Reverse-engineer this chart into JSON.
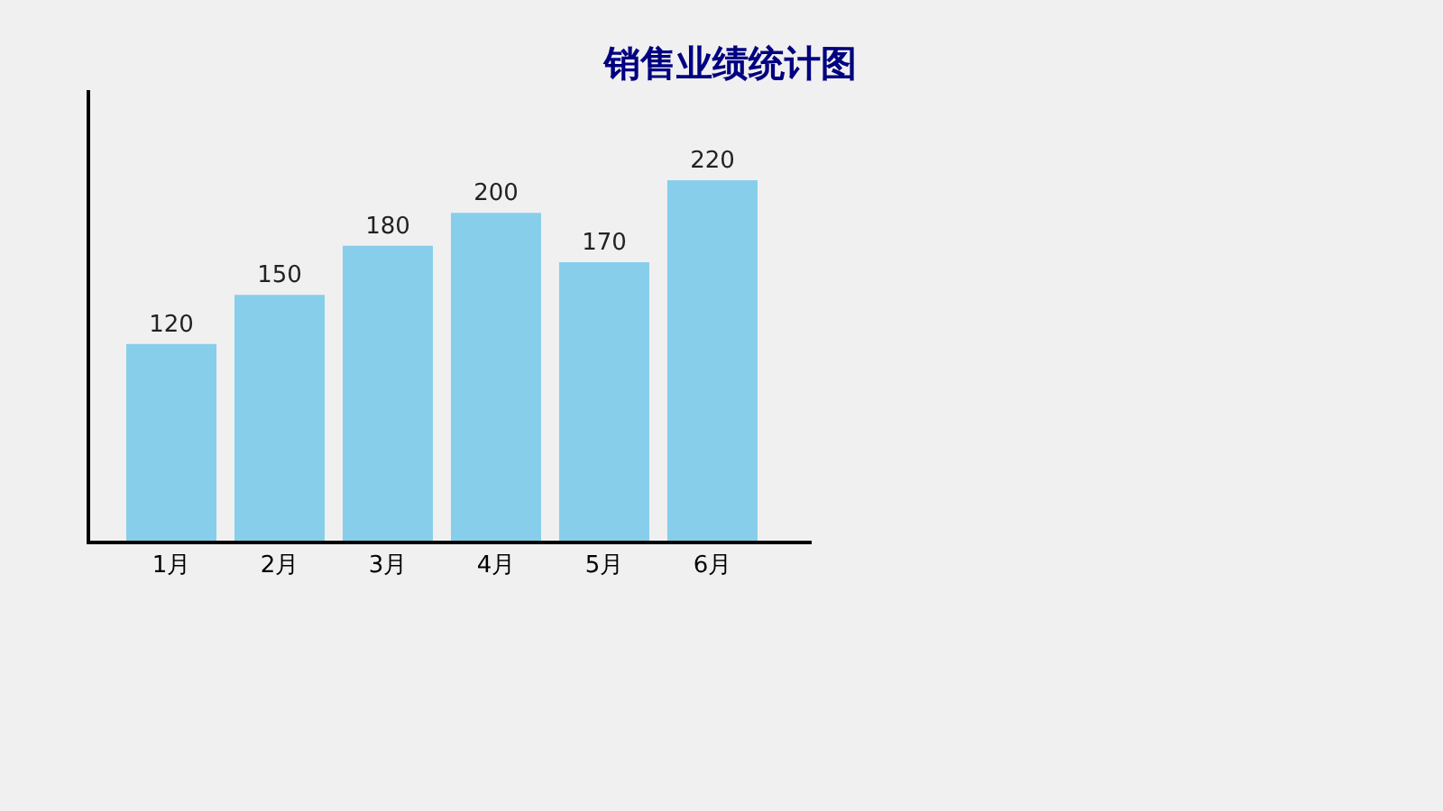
{
  "chart_data": {
    "type": "bar",
    "title": "销售业绩统计图",
    "categories": [
      "1月",
      "2月",
      "3月",
      "4月",
      "5月",
      "6月"
    ],
    "values": [
      120,
      150,
      180,
      200,
      170,
      220
    ],
    "color": "#87ceeb",
    "ylim": [
      0,
      275
    ],
    "data_labels": true,
    "tick_labels": "x",
    "grid": false
  }
}
